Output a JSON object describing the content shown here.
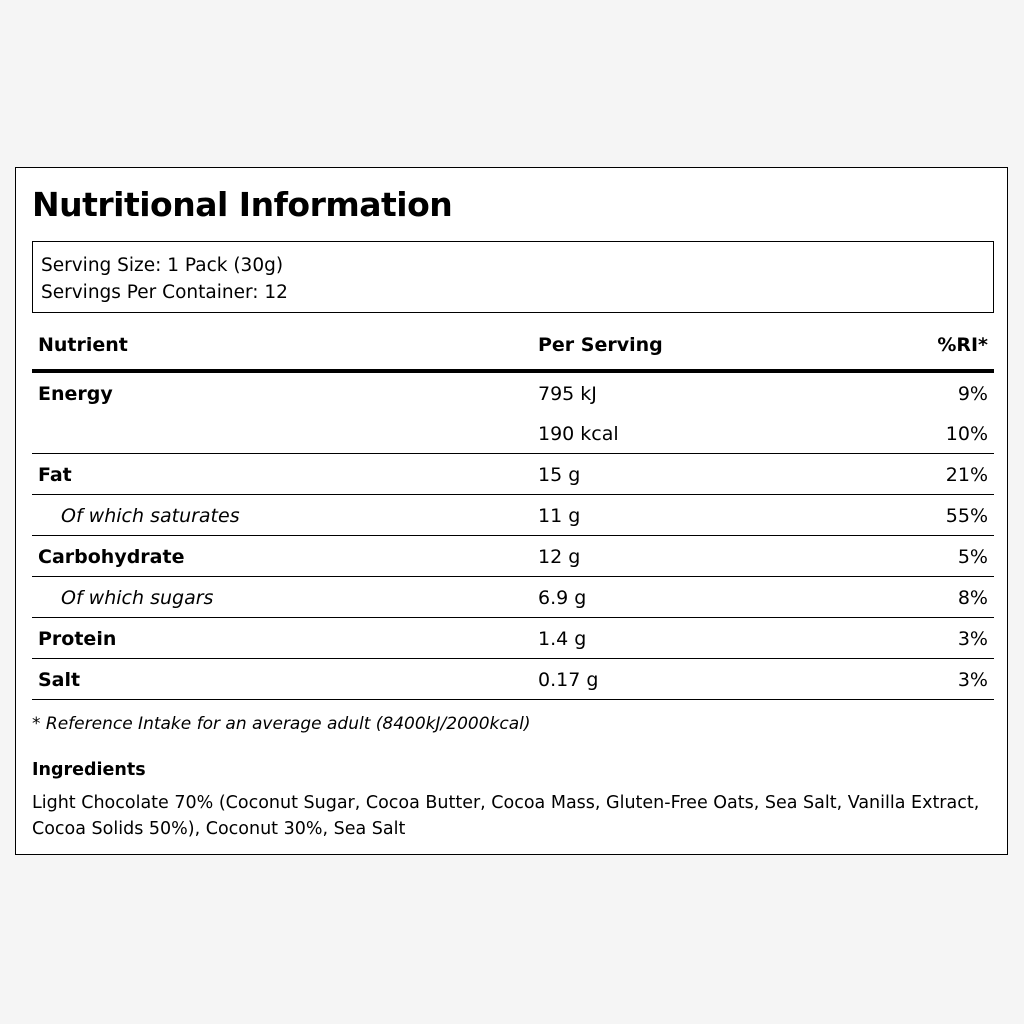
{
  "title": "Nutritional Information",
  "serving": {
    "size": "Serving Size: 1 Pack (30g)",
    "per_container": "Servings Per Container: 12"
  },
  "table": {
    "headers": {
      "nutrient": "Nutrient",
      "per_serving": "Per Serving",
      "ri": "%RI*"
    },
    "rows": [
      {
        "name": "Energy",
        "per": "795 kJ",
        "ri": "9%"
      },
      {
        "name": "",
        "per": "190 kcal",
        "ri": "10%"
      },
      {
        "name": "Fat",
        "per": "15 g",
        "ri": "21%"
      },
      {
        "name": "Of which saturates",
        "per": "11 g",
        "ri": "55%"
      },
      {
        "name": "Carbohydrate",
        "per": "12 g",
        "ri": "5%"
      },
      {
        "name": "Of which sugars",
        "per": "6.9 g",
        "ri": "8%"
      },
      {
        "name": "Protein",
        "per": "1.4 g",
        "ri": "3%"
      },
      {
        "name": "Salt",
        "per": "0.17 g",
        "ri": "3%"
      }
    ]
  },
  "footnote": "* Reference Intake for an average adult (8400kJ/2000kcal)",
  "ingredients": {
    "title": "Ingredients",
    "text": "Light Chocolate 70% (Coconut Sugar, Cocoa Butter, Cocoa Mass, Gluten-Free Oats, Sea Salt, Vanilla Extract, Cocoa Solids 50%), Coconut 30%, Sea Salt"
  }
}
